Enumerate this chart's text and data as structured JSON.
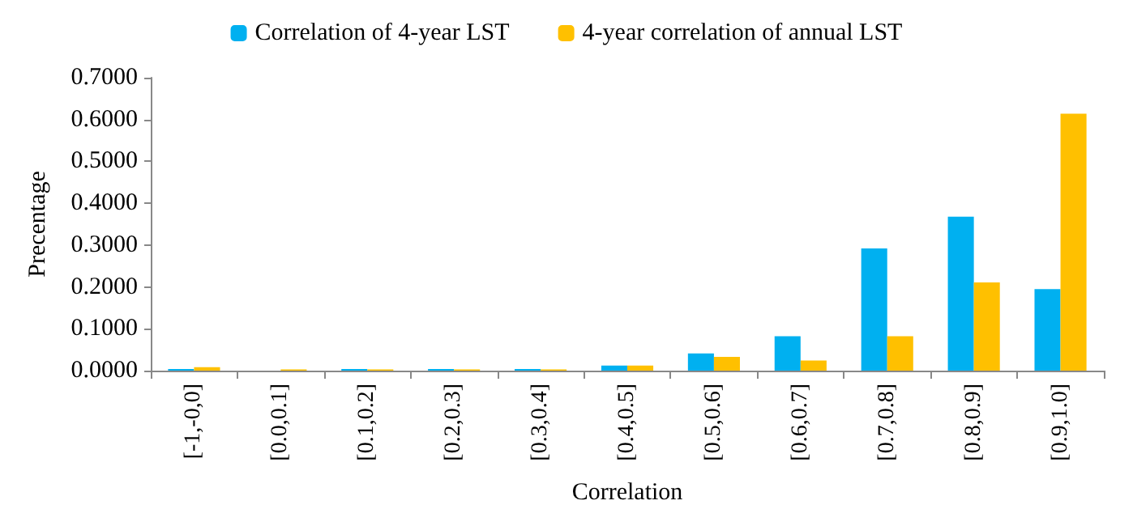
{
  "chart_data": {
    "type": "bar",
    "xlabel": "Correlation",
    "ylabel": "Precentage",
    "categories": [
      "[-1,-0,0]",
      "[0.0,0.1]",
      "[0.1,0.2]",
      "[0.2,0.3]",
      "[0.3,0.4]",
      "[0.4,0.5]",
      "[0.5,0.6]",
      "[0.6,0.7]",
      "[0.7,0.8]",
      "[0.8,0.9]",
      "[0.9,1.0]"
    ],
    "series": [
      {
        "name": "Correlation of 4-year LST",
        "color": "#00b0f0",
        "values": [
          0.004,
          0,
          0.004,
          0.004,
          0.004,
          0.012,
          0.041,
          0.082,
          0.292,
          0.368,
          0.195
        ]
      },
      {
        "name": "4-year correlation of annual LST",
        "color": "#ffc000",
        "values": [
          0.008,
          0.003,
          0.003,
          0.003,
          0.003,
          0.012,
          0.033,
          0.024,
          0.082,
          0.211,
          0.614
        ]
      }
    ],
    "ylim": [
      0,
      0.7
    ],
    "yticks": [
      {
        "value": 0,
        "label": "0.0000"
      },
      {
        "value": 0.1,
        "label": "0.1000"
      },
      {
        "value": 0.2,
        "label": "0.2000"
      },
      {
        "value": 0.3,
        "label": "0.3000"
      },
      {
        "value": 0.4,
        "label": "0.4000"
      },
      {
        "value": 0.5,
        "label": "0.5000"
      },
      {
        "value": 0.6,
        "label": "0.6000"
      },
      {
        "value": 0.7,
        "label": "0.7000"
      }
    ],
    "grid": false,
    "legend": "top"
  }
}
